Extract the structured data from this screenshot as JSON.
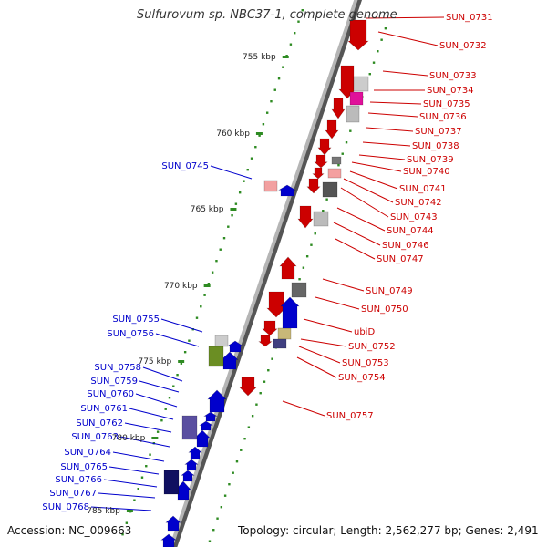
{
  "title": "Sulfurovum sp. NBC37-1, complete genome",
  "footer": {
    "accession": "Accession: NC_009663",
    "topology": "Topology: circular; Length: 2,562,277 bp; Genes: 2,491"
  },
  "colors": {
    "forward": "#0000cc",
    "reverse": "#cc0000",
    "tick": "#2e8b22",
    "backbone": "#888888"
  },
  "ticks": [
    "755 kbp",
    "760 kbp",
    "765 kbp",
    "770 kbp",
    "775 kbp",
    "780 kbp",
    "785 kbp"
  ],
  "forward_labels": [
    "SUN_0745",
    "SUN_0755",
    "SUN_0756",
    "SUN_0758",
    "SUN_0759",
    "SUN_0760",
    "SUN_0761",
    "SUN_0762",
    "SUN_0763",
    "SUN_0764",
    "SUN_0765",
    "SUN_0766",
    "SUN_0767",
    "SUN_0768"
  ],
  "reverse_labels": [
    "SUN_0731",
    "SUN_0732",
    "SUN_0733",
    "SUN_0734",
    "SUN_0735",
    "SUN_0736",
    "SUN_0737",
    "SUN_0738",
    "SUN_0739",
    "SUN_0740",
    "SUN_0741",
    "SUN_0742",
    "SUN_0743",
    "SUN_0744",
    "SUN_0746",
    "SUN_0747",
    "SUN_0749",
    "SUN_0750",
    "ubiD",
    "SUN_0752",
    "SUN_0753",
    "SUN_0754",
    "SUN_0757"
  ]
}
